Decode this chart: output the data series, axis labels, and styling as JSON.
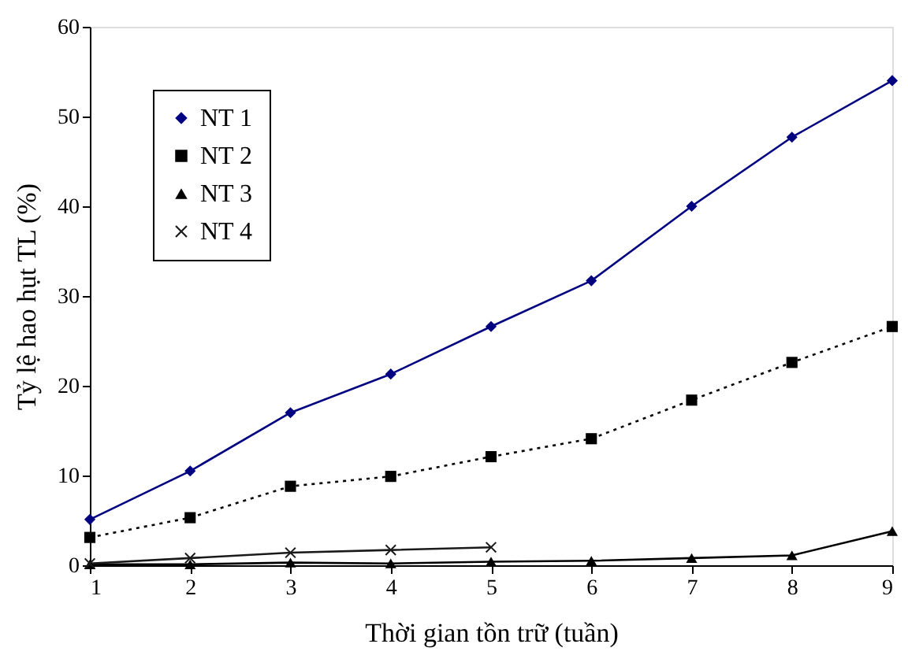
{
  "chart_data": {
    "type": "line",
    "xlabel": "Thời gian tồn trữ (tuần)",
    "ylabel": "Tỷ lệ hao hụt TL (%)",
    "x": [
      1,
      2,
      3,
      4,
      5,
      6,
      7,
      8,
      9
    ],
    "series": [
      {
        "name": "NT 1",
        "color": "#000080",
        "marker": "diamond",
        "line_style": "solid",
        "values": [
          5.1,
          10.5,
          17.0,
          21.3,
          26.6,
          31.7,
          40.0,
          47.7,
          54.0
        ]
      },
      {
        "name": "NT 2",
        "color": "#000000",
        "marker": "square",
        "line_style": "dotted",
        "values": [
          3.1,
          5.3,
          8.8,
          9.9,
          12.1,
          14.1,
          18.4,
          22.6,
          26.6
        ]
      },
      {
        "name": "NT 3",
        "color": "#000000",
        "marker": "triangle",
        "line_style": "solid",
        "values": [
          0.1,
          0.1,
          0.3,
          0.2,
          0.4,
          0.5,
          0.8,
          1.1,
          3.8
        ]
      },
      {
        "name": "NT 4",
        "color": "#1a1a1a",
        "marker": "cross",
        "line_style": "solid",
        "values": [
          0.2,
          0.8,
          1.4,
          1.7,
          2.0,
          null,
          null,
          null,
          null
        ]
      }
    ],
    "xlim": [
      1,
      9
    ],
    "xticks": [
      1,
      2,
      3,
      4,
      5,
      6,
      7,
      8,
      9
    ],
    "ylim": [
      0,
      60
    ],
    "yticks": [
      0,
      10,
      20,
      30,
      40,
      50,
      60
    ],
    "grid": false,
    "legend": "top left"
  }
}
